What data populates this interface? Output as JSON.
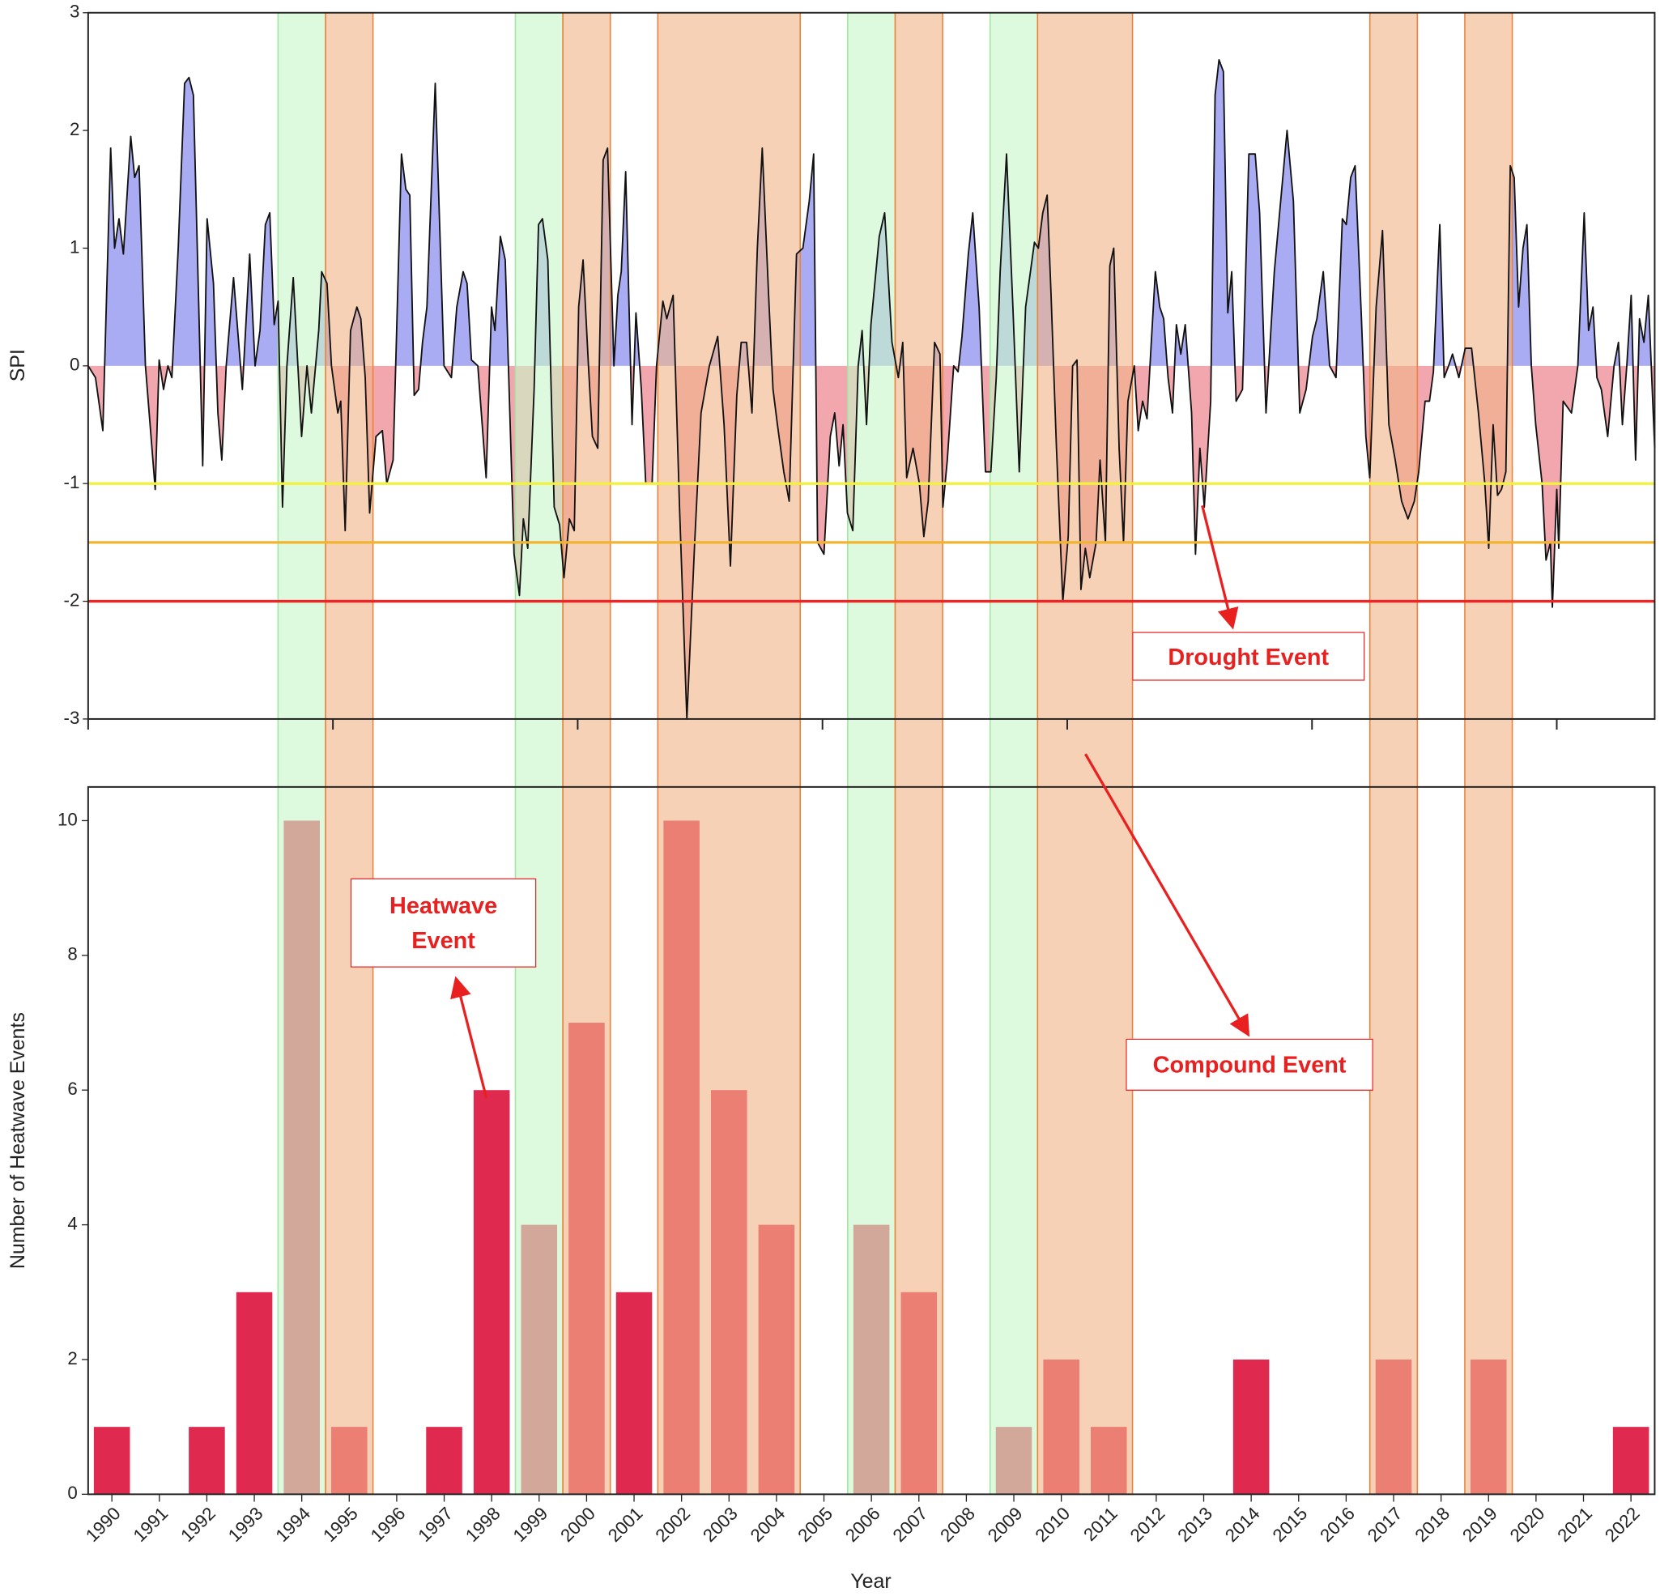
{
  "chart_data": [
    {
      "type": "line",
      "ylabel": "SPI",
      "xlim": [
        1990,
        2022
      ],
      "xticks": [
        1990,
        1995,
        2000,
        2005,
        2010,
        2015,
        2020
      ],
      "ylim": [
        -3,
        3
      ],
      "yticks": [
        -3,
        -2,
        -1,
        0,
        1,
        2,
        3
      ],
      "positive_color": "#a9acf2",
      "negative_color": "#f2a7ae",
      "thresholds": [
        {
          "value": -1,
          "color": "#f2f23c"
        },
        {
          "value": -1.5,
          "color": "#f0b430"
        },
        {
          "value": -2,
          "color": "#f02424"
        }
      ],
      "series": [
        {
          "name": "SPI",
          "color": "#111111",
          "x": [
            1990.0,
            1990.15,
            1990.3,
            1990.46,
            1990.54,
            1990.63,
            1990.72,
            1990.87,
            1990.95,
            1991.04,
            1991.17,
            1991.37,
            1991.45,
            1991.54,
            1991.63,
            1991.71,
            1991.84,
            1991.97,
            1992.06,
            1992.15,
            1992.26,
            1992.34,
            1992.43,
            1992.56,
            1992.65,
            1992.73,
            1992.82,
            1992.97,
            1993.15,
            1993.3,
            1993.41,
            1993.51,
            1993.62,
            1993.71,
            1993.8,
            1993.88,
            1993.97,
            1994.06,
            1994.19,
            1994.36,
            1994.47,
            1994.56,
            1994.71,
            1994.77,
            1994.88,
            1994.97,
            1995.1,
            1995.16,
            1995.25,
            1995.36,
            1995.49,
            1995.57,
            1995.66,
            1995.75,
            1995.88,
            1996.01,
            1996.1,
            1996.23,
            1996.4,
            1996.49,
            1996.57,
            1996.66,
            1996.75,
            1996.83,
            1996.92,
            1997.09,
            1997.27,
            1997.42,
            1997.53,
            1997.66,
            1997.74,
            1997.83,
            1997.96,
            1998.13,
            1998.24,
            1998.31,
            1998.42,
            1998.52,
            1998.7,
            1998.81,
            1998.89,
            1998.98,
            1999.11,
            1999.2,
            1999.28,
            1999.39,
            1999.52,
            1999.63,
            1999.72,
            1999.83,
            1999.93,
            2000.02,
            2000.11,
            2000.22,
            2000.3,
            2000.41,
            2000.52,
            2000.61,
            2000.74,
            2000.82,
            2000.89,
            2000.98,
            2001.11,
            2001.19,
            2001.3,
            2001.39,
            2001.52,
            2001.61,
            2001.74,
            2001.82,
            2001.95,
            2002.08,
            2002.23,
            2002.39,
            2002.52,
            2002.69,
            2002.86,
            2002.99,
            2003.12,
            2003.25,
            2003.34,
            2003.45,
            2003.56,
            2003.67,
            2003.77,
            2003.9,
            2003.99,
            2004.08,
            2004.21,
            2004.32,
            2004.47,
            2004.6,
            2004.73,
            2004.82,
            2004.9,
            2005.03,
            2005.16,
            2005.25,
            2005.34,
            2005.42,
            2005.51,
            2005.62,
            2005.73,
            2005.81,
            2005.9,
            2005.99,
            2006.16,
            2006.27,
            2006.42,
            2006.55,
            2006.64,
            2006.72,
            2006.85,
            2006.98,
            2007.07,
            2007.16,
            2007.29,
            2007.4,
            2007.46,
            2007.55,
            2007.68,
            2007.77,
            2007.85,
            2007.98,
            2008.07,
            2008.2,
            2008.33,
            2008.44,
            2008.55,
            2008.63,
            2008.76,
            2008.89,
            2009.02,
            2009.15,
            2009.33,
            2009.41,
            2009.5,
            2009.59,
            2009.67,
            2009.78,
            2009.91,
            2010.02,
            2010.11,
            2010.2,
            2010.28,
            2010.37,
            2010.46,
            2010.59,
            2010.67,
            2010.78,
            2010.87,
            2010.95,
            2011.06,
            2011.15,
            2011.24,
            2011.37,
            2011.45,
            2011.54,
            2011.63,
            2011.71,
            2011.8,
            2011.89,
            2011.97,
            2012.06,
            2012.15,
            2012.23,
            2012.32,
            2012.41,
            2012.54,
            2012.62,
            2012.71,
            2012.8,
            2012.93,
            2013.02,
            2013.1,
            2013.19,
            2013.28,
            2013.36,
            2013.45,
            2013.58,
            2013.71,
            2013.84,
            2013.93,
            2014.06,
            2014.23,
            2014.36,
            2014.49,
            2014.62,
            2014.75,
            2014.88,
            2015.01,
            2015.1,
            2015.23,
            2015.36,
            2015.49,
            2015.62,
            2015.7,
            2015.79,
            2015.88,
            2016.01,
            2016.1,
            2016.18,
            2016.31,
            2016.44,
            2016.57,
            2016.7,
            2016.83,
            2016.96,
            2017.09,
            2017.18,
            2017.31,
            2017.4,
            2017.48,
            2017.61,
            2017.7,
            2017.79,
            2017.87,
            2018.0,
            2018.13,
            2018.26,
            2018.4,
            2018.53,
            2018.61,
            2018.7,
            2018.79,
            2018.87,
            2018.96,
            2019.05,
            2019.13,
            2019.22,
            2019.31,
            2019.39,
            2019.48,
            2019.57,
            2019.7,
            2019.78,
            2019.87,
            2019.91,
            2020.0,
            2020.04,
            2020.13,
            2020.3,
            2020.43,
            2020.56,
            2020.65,
            2020.74,
            2020.82,
            2020.91,
            2021.04,
            2021.17,
            2021.26,
            2021.34,
            2021.43,
            2021.52,
            2021.61,
            2021.69,
            2021.78,
            2021.87,
            2022.0
          ],
          "values": [
            0.0,
            -0.1,
            -0.55,
            1.85,
            1.0,
            1.25,
            0.95,
            1.95,
            1.6,
            1.7,
            0.0,
            -1.05,
            0.05,
            -0.2,
            0.0,
            -0.1,
            1.0,
            2.4,
            2.45,
            2.3,
            0.5,
            -0.85,
            1.25,
            0.7,
            -0.4,
            -0.8,
            0.0,
            0.75,
            -0.2,
            0.95,
            0.0,
            0.3,
            1.2,
            1.3,
            0.35,
            0.55,
            -1.2,
            0.0,
            0.75,
            -0.6,
            0.0,
            -0.4,
            0.3,
            0.8,
            0.7,
            0.0,
            -0.4,
            -0.3,
            -1.4,
            0.3,
            0.5,
            0.4,
            -0.1,
            -1.25,
            -0.6,
            -0.55,
            -1.0,
            -0.8,
            1.8,
            1.5,
            1.45,
            -0.25,
            -0.2,
            0.2,
            0.5,
            2.4,
            0.0,
            -0.1,
            0.5,
            0.8,
            0.7,
            0.05,
            0.0,
            -0.95,
            0.5,
            0.3,
            1.1,
            0.9,
            -1.6,
            -1.95,
            -1.3,
            -1.55,
            -0.2,
            1.2,
            1.25,
            0.9,
            -1.2,
            -1.35,
            -1.8,
            -1.3,
            -1.4,
            0.5,
            0.9,
            0.0,
            -0.6,
            -0.7,
            1.75,
            1.85,
            0.0,
            0.6,
            0.8,
            1.65,
            -0.5,
            0.45,
            -0.2,
            -1.0,
            -1.0,
            0.0,
            0.55,
            0.4,
            0.6,
            -1.2,
            -3.0,
            -1.5,
            -0.4,
            0.0,
            0.25,
            -0.5,
            -1.7,
            -0.25,
            0.2,
            0.2,
            -0.4,
            1.0,
            1.85,
            0.6,
            -0.2,
            -0.5,
            -0.9,
            -1.15,
            0.95,
            1.0,
            1.4,
            1.8,
            -1.5,
            -1.6,
            -0.6,
            -0.4,
            -0.85,
            -0.5,
            -1.25,
            -1.4,
            0.0,
            0.3,
            -0.5,
            0.35,
            1.1,
            1.3,
            0.2,
            -0.1,
            0.2,
            -0.95,
            -0.7,
            -1.0,
            -1.45,
            -1.15,
            0.2,
            0.1,
            -1.2,
            -0.8,
            0.0,
            -0.05,
            0.25,
            0.95,
            1.3,
            0.5,
            -0.9,
            -0.9,
            -0.1,
            0.8,
            1.8,
            0.5,
            -0.9,
            0.5,
            1.05,
            1.0,
            1.3,
            1.45,
            0.6,
            -0.7,
            -2.0,
            -1.45,
            0.0,
            0.05,
            -1.9,
            -1.55,
            -1.8,
            -1.5,
            -0.8,
            -1.5,
            0.85,
            1.0,
            -0.7,
            -1.5,
            -0.3,
            0.0,
            -0.55,
            -0.3,
            -0.45,
            0.15,
            0.8,
            0.5,
            0.4,
            -0.1,
            -0.4,
            0.35,
            0.1,
            0.35,
            -0.4,
            -1.6,
            -0.7,
            -1.2,
            -0.3,
            2.3,
            2.6,
            2.5,
            0.45,
            0.8,
            -0.3,
            -0.2,
            1.8,
            1.8,
            1.3,
            -0.4,
            0.8,
            1.4,
            2.0,
            1.4,
            -0.4,
            -0.2,
            0.25,
            0.4,
            0.8,
            0.0,
            -0.1,
            1.25,
            1.2,
            1.6,
            1.7,
            0.4,
            -0.6,
            -0.95,
            0.5,
            1.15,
            -0.5,
            -0.8,
            -1.15,
            -1.3,
            -1.15,
            -0.9,
            -0.3,
            -0.3,
            -0.05,
            1.2,
            -0.1,
            0.0,
            0.1,
            -0.1,
            0.15,
            0.15,
            -0.4,
            -1.0,
            -1.55,
            -0.5,
            -1.1,
            -1.05,
            -0.9,
            1.7,
            1.6,
            0.5,
            1.0,
            1.2,
            0.0,
            -0.5,
            -1.0,
            -1.65,
            -1.5,
            -2.05,
            -1.05,
            -1.55,
            -0.3,
            -0.4,
            0.0,
            1.3,
            0.3,
            0.5,
            -0.1,
            -0.2,
            -0.6,
            0.0,
            0.2,
            -0.5,
            0.0,
            0.6,
            -0.8,
            0.4,
            0.2,
            0.6,
            -0.7
          ]
        }
      ]
    },
    {
      "type": "bar",
      "xlabel": "Year",
      "ylabel": "Number of Heatwave Events",
      "color": "#e0294f",
      "categories": [
        "1990",
        "1991",
        "1992",
        "1993",
        "1994",
        "1995",
        "1996",
        "1997",
        "1998",
        "1999",
        "2000",
        "2001",
        "2002",
        "2003",
        "2004",
        "2005",
        "2006",
        "2007",
        "2008",
        "2009",
        "2010",
        "2011",
        "2012",
        "2013",
        "2014",
        "2015",
        "2016",
        "2017",
        "2018",
        "2019",
        "2020",
        "2021",
        "2022"
      ],
      "values": [
        1,
        0,
        1,
        3,
        10,
        1,
        0,
        1,
        6,
        4,
        7,
        3,
        10,
        6,
        4,
        0,
        4,
        3,
        0,
        1,
        2,
        1,
        0,
        0,
        2,
        0,
        0,
        2,
        0,
        2,
        0,
        0,
        1
      ],
      "ylim": [
        0,
        10.5
      ],
      "yticks": [
        0,
        2,
        4,
        6,
        8,
        10
      ]
    }
  ],
  "shaded_periods": [
    {
      "start": "1994",
      "end": "1994",
      "color": "#c9f7c9",
      "edge": "#a4e4a4"
    },
    {
      "start": "1995",
      "end": "1995",
      "color": "#f2b489",
      "edge": "#e8823c"
    },
    {
      "start": "1999",
      "end": "1999",
      "color": "#c9f7c9",
      "edge": "#a4e4a4"
    },
    {
      "start": "2000",
      "end": "2000",
      "color": "#f2b489",
      "edge": "#e8823c"
    },
    {
      "start": "2002",
      "end": "2004",
      "color": "#f2b489",
      "edge": "#e8823c"
    },
    {
      "start": "2006",
      "end": "2006",
      "color": "#c9f7c9",
      "edge": "#a4e4a4"
    },
    {
      "start": "2007",
      "end": "2007",
      "color": "#f2b489",
      "edge": "#e8823c"
    },
    {
      "start": "2009",
      "end": "2009",
      "color": "#c9f7c9",
      "edge": "#a4e4a4"
    },
    {
      "start": "2010",
      "end": "2011",
      "color": "#f2b489",
      "edge": "#e8823c"
    },
    {
      "start": "2017",
      "end": "2017",
      "color": "#f2b489",
      "edge": "#e8823c"
    },
    {
      "start": "2019",
      "end": "2019",
      "color": "#f2b489",
      "edge": "#e8823c"
    }
  ],
  "annotations": [
    "Drought Event",
    "Heatwave Event",
    "Compound Event"
  ]
}
